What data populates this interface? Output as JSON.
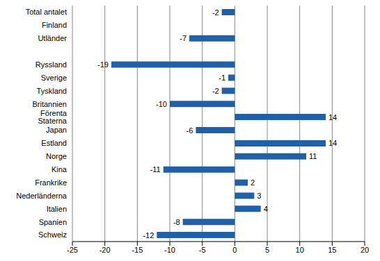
{
  "chart_data": {
    "type": "bar",
    "orientation": "horizontal",
    "categories": [
      "Total antalet",
      "Finland",
      "Utländer",
      null,
      "Ryssland",
      "Sverige",
      "Tyskland",
      "Britannien",
      "Förenta Staterna",
      "Japan",
      "Estland",
      "Norge",
      "Kina",
      "Frankrike",
      "Nederländerna",
      "Italien",
      "Spanien",
      "Schweiz"
    ],
    "values": [
      -2,
      0,
      -7,
      null,
      -19,
      -1,
      -2,
      -10,
      14,
      -6,
      14,
      11,
      -11,
      2,
      3,
      4,
      -8,
      -12
    ],
    "color": "#2060a8",
    "xlim": [
      -25,
      20
    ],
    "xticks": [
      -25,
      -20,
      -15,
      -10,
      -5,
      0,
      5,
      10,
      15,
      20
    ],
    "grid": true,
    "data_labels": true
  }
}
